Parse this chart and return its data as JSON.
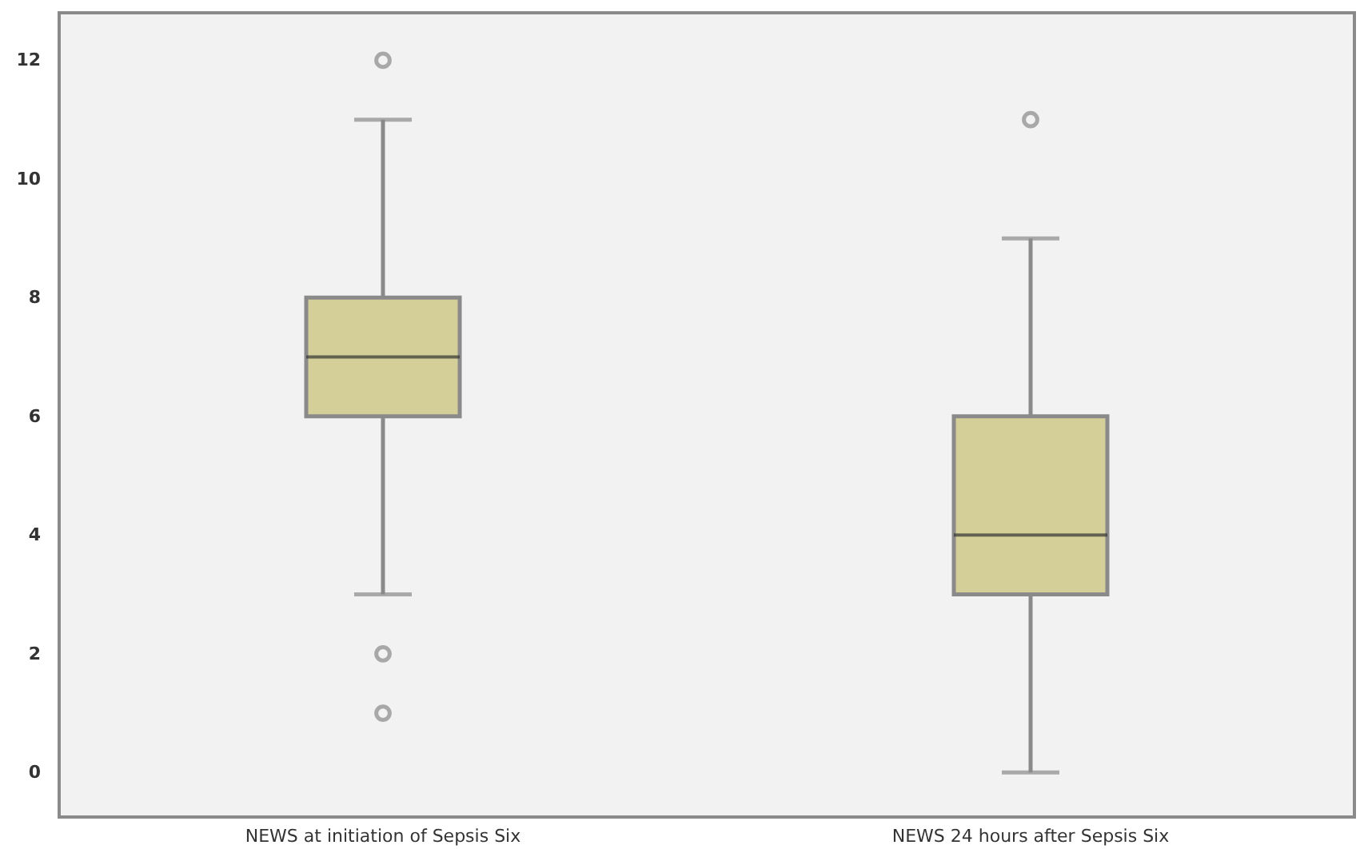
{
  "chart_data": {
    "type": "box",
    "categories": [
      "NEWS at initiation of Sepsis Six",
      "NEWS 24 hours after Sepsis Six"
    ],
    "boxes": [
      {
        "low": 3,
        "q1": 6,
        "median": 7,
        "q3": 8,
        "high": 11,
        "outliers": [
          12,
          2,
          1
        ]
      },
      {
        "low": 0,
        "q1": 3,
        "median": 4,
        "q3": 6,
        "high": 9,
        "outliers": [
          11
        ]
      }
    ],
    "color": "#d4cf98",
    "ylim": [
      -0.75,
      12.8
    ],
    "yticks": [
      0,
      2,
      4,
      6,
      8,
      10,
      12
    ],
    "grid": false
  }
}
